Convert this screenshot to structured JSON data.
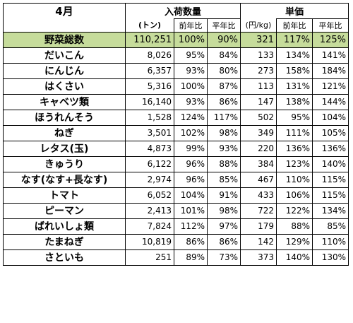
{
  "header": {
    "month": "4月",
    "arrival_group": "入荷数量",
    "price_group": "単価",
    "unit_ton": "(トン)",
    "unit_yen_kg": "(円/kg)",
    "yoy": "前年比",
    "vs_avg": "平年比"
  },
  "rows": [
    {
      "name": "野菜総数",
      "qty": "110,251",
      "qty_yoy": "100%",
      "qty_avg": "90%",
      "price": "321",
      "price_yoy": "117%",
      "price_avg": "125%"
    },
    {
      "name": "だいこん",
      "qty": "8,026",
      "qty_yoy": "95%",
      "qty_avg": "84%",
      "price": "133",
      "price_yoy": "134%",
      "price_avg": "141%"
    },
    {
      "name": "にんじん",
      "qty": "6,357",
      "qty_yoy": "93%",
      "qty_avg": "80%",
      "price": "273",
      "price_yoy": "158%",
      "price_avg": "184%"
    },
    {
      "name": "はくさい",
      "qty": "5,316",
      "qty_yoy": "100%",
      "qty_avg": "87%",
      "price": "113",
      "price_yoy": "131%",
      "price_avg": "121%"
    },
    {
      "name": "キャベツ類",
      "qty": "16,140",
      "qty_yoy": "93%",
      "qty_avg": "86%",
      "price": "147",
      "price_yoy": "138%",
      "price_avg": "144%"
    },
    {
      "name": "ほうれんそう",
      "qty": "1,528",
      "qty_yoy": "124%",
      "qty_avg": "117%",
      "price": "502",
      "price_yoy": "95%",
      "price_avg": "104%"
    },
    {
      "name": "ねぎ",
      "qty": "3,501",
      "qty_yoy": "102%",
      "qty_avg": "98%",
      "price": "349",
      "price_yoy": "111%",
      "price_avg": "105%"
    },
    {
      "name": "レタス(玉)",
      "qty": "4,873",
      "qty_yoy": "99%",
      "qty_avg": "93%",
      "price": "220",
      "price_yoy": "136%",
      "price_avg": "136%"
    },
    {
      "name": "きゅうり",
      "qty": "6,122",
      "qty_yoy": "96%",
      "qty_avg": "88%",
      "price": "384",
      "price_yoy": "123%",
      "price_avg": "140%"
    },
    {
      "name": "なす(なす+長なす)",
      "qty": "2,974",
      "qty_yoy": "96%",
      "qty_avg": "85%",
      "price": "467",
      "price_yoy": "110%",
      "price_avg": "115%"
    },
    {
      "name": "トマト",
      "qty": "6,052",
      "qty_yoy": "104%",
      "qty_avg": "91%",
      "price": "433",
      "price_yoy": "106%",
      "price_avg": "115%"
    },
    {
      "name": "ピーマン",
      "qty": "2,413",
      "qty_yoy": "101%",
      "qty_avg": "98%",
      "price": "722",
      "price_yoy": "122%",
      "price_avg": "134%"
    },
    {
      "name": "ばれいしょ類",
      "qty": "7,824",
      "qty_yoy": "112%",
      "qty_avg": "97%",
      "price": "179",
      "price_yoy": "88%",
      "price_avg": "85%"
    },
    {
      "name": "たまねぎ",
      "qty": "10,819",
      "qty_yoy": "86%",
      "qty_avg": "86%",
      "price": "142",
      "price_yoy": "129%",
      "price_avg": "110%"
    },
    {
      "name": "さといも",
      "qty": "251",
      "qty_yoy": "89%",
      "qty_avg": "73%",
      "price": "373",
      "price_yoy": "140%",
      "price_avg": "130%"
    }
  ],
  "colors": {
    "total_row_bg": "#c6dc9b",
    "grid": "#000000"
  }
}
